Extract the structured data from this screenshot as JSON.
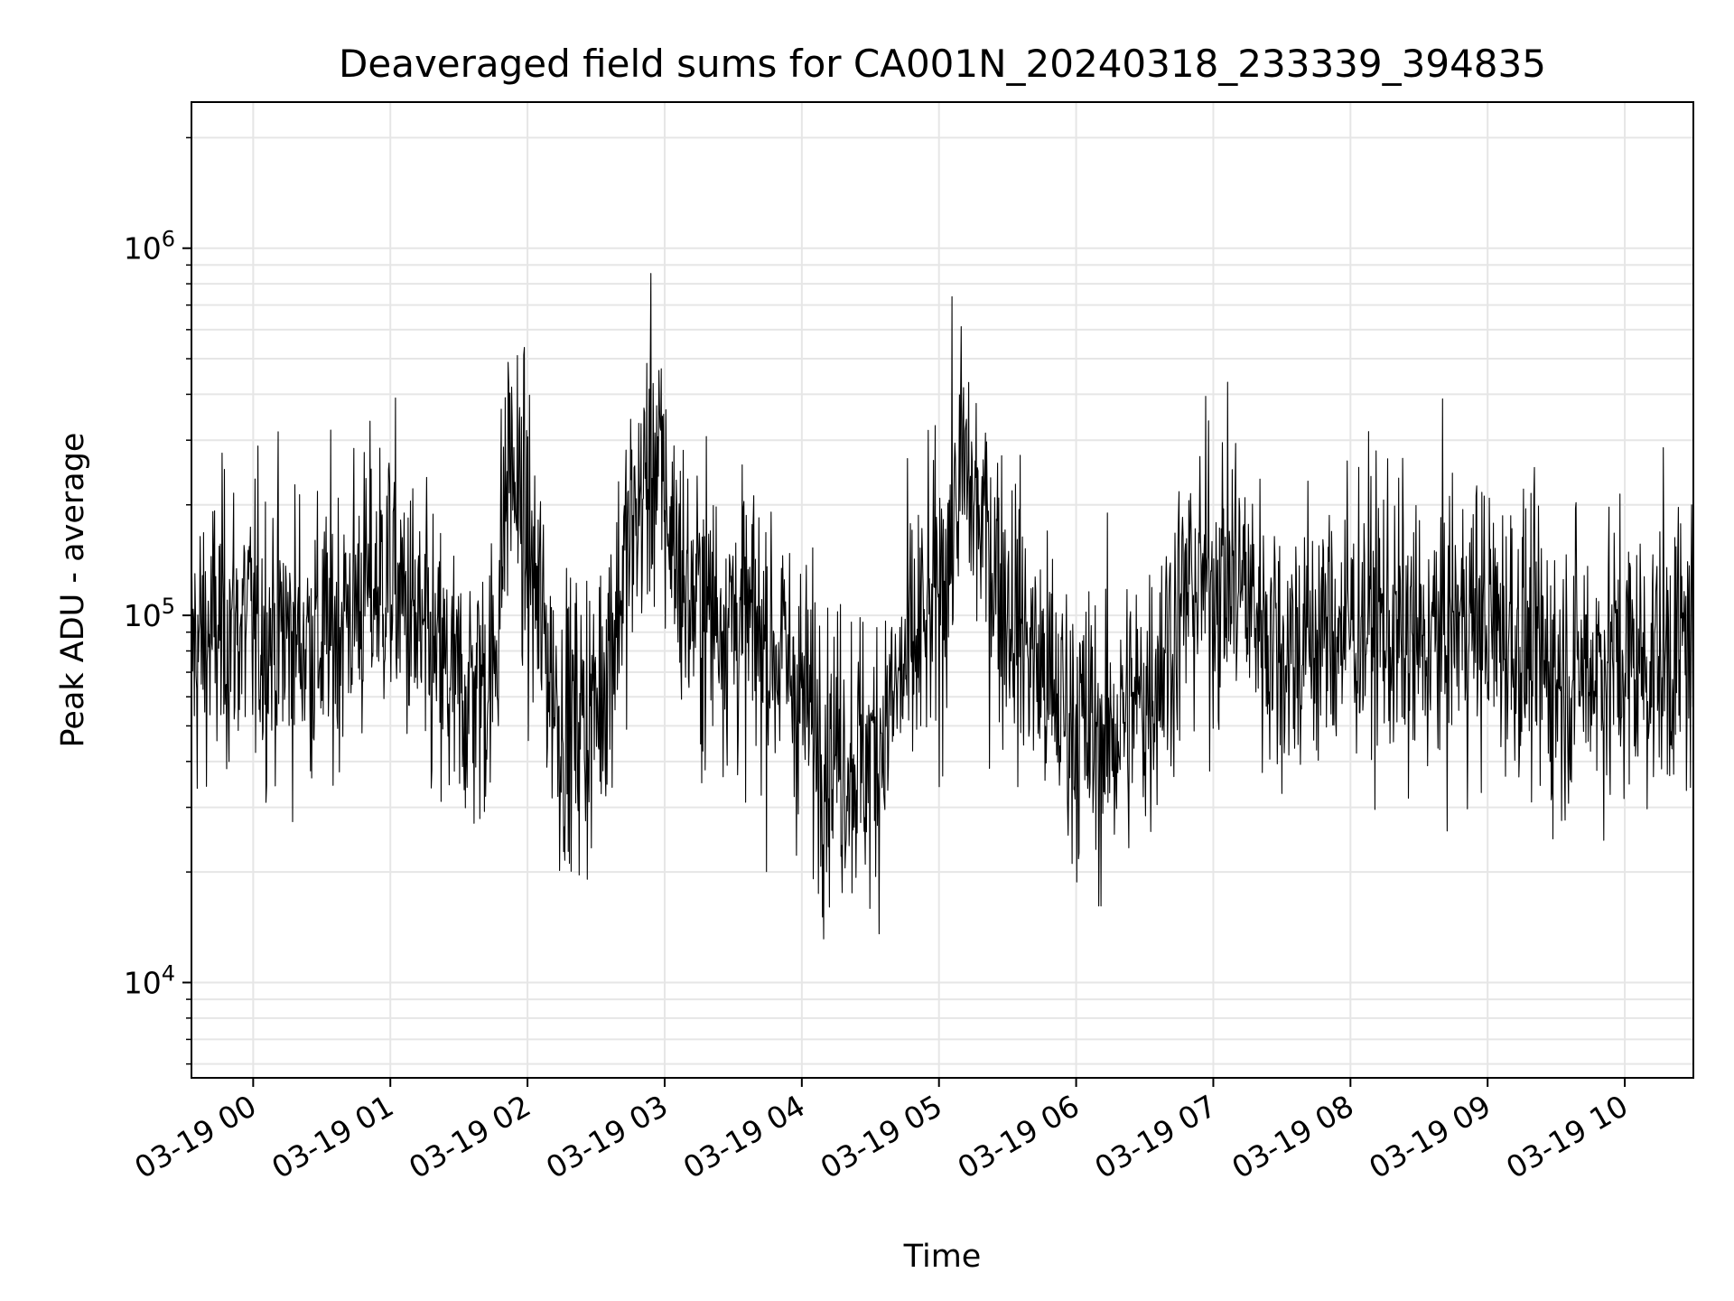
{
  "chart_data": {
    "type": "line",
    "title": "Deaveraged field sums for CA001N_20240318_233339_394835",
    "xlabel": "Time",
    "ylabel": "Peak ADU - average",
    "yscale": "log",
    "ylim": [
      5500,
      2500000
    ],
    "y_ticks": [
      {
        "value": 10000,
        "base": "10",
        "exp": "4"
      },
      {
        "value": 100000,
        "base": "10",
        "exp": "5"
      },
      {
        "value": 1000000,
        "base": "10",
        "exp": "6"
      }
    ],
    "xlim": [
      "2024-03-18 23:33",
      "2024-03-19 10:30"
    ],
    "x_ticks": [
      "03-19 00",
      "03-19 01",
      "03-19 02",
      "03-19 03",
      "03-19 04",
      "03-19 05",
      "03-19 06",
      "03-19 07",
      "03-19 08",
      "03-19 09",
      "03-19 10"
    ],
    "grid": true,
    "line_color": "#000000",
    "grid_color": "#e6e6e6",
    "series": [
      {
        "x": [
          "2024-03-18 23:33",
          "2024-03-18 23:50",
          "2024-03-19 00:10",
          "2024-03-19 00:30",
          "2024-03-19 00:45",
          "2024-03-19 01:00",
          "2024-03-19 01:15",
          "2024-03-19 01:30",
          "2024-03-19 01:45",
          "2024-03-19 01:52",
          "2024-03-19 02:00",
          "2024-03-19 02:15",
          "2024-03-19 02:30",
          "2024-03-19 02:45",
          "2024-03-19 02:55",
          "2024-03-19 03:10",
          "2024-03-19 03:30",
          "2024-03-19 03:50",
          "2024-03-19 04:10",
          "2024-03-19 04:30",
          "2024-03-19 04:45",
          "2024-03-19 05:00",
          "2024-03-19 05:10",
          "2024-03-19 05:30",
          "2024-03-19 05:50",
          "2024-03-19 06:10",
          "2024-03-19 06:30",
          "2024-03-19 06:50",
          "2024-03-19 07:10",
          "2024-03-19 07:30",
          "2024-03-19 07:50",
          "2024-03-19 08:10",
          "2024-03-19 08:30",
          "2024-03-19 08:50",
          "2024-03-19 09:10",
          "2024-03-19 09:30",
          "2024-03-19 09:50",
          "2024-03-19 10:10",
          "2024-03-19 10:30"
        ],
        "y": [
          80000,
          95000,
          90000,
          85000,
          110000,
          130000,
          80000,
          60000,
          70000,
          280000,
          150000,
          50000,
          55000,
          160000,
          280000,
          110000,
          100000,
          80000,
          45000,
          40000,
          70000,
          110000,
          250000,
          110000,
          60000,
          45000,
          60000,
          120000,
          130000,
          80000,
          90000,
          100000,
          80000,
          100000,
          90000,
          70000,
          75000,
          75000,
          85000
        ]
      }
    ]
  }
}
